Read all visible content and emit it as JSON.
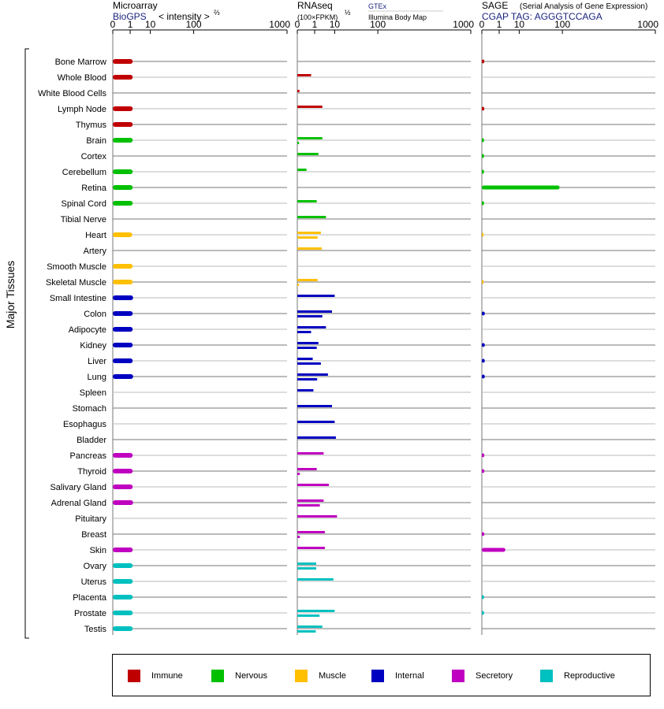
{
  "panels": {
    "microarray": {
      "title": "Microarray",
      "source": "BioGPS",
      "unit": "< intensity >",
      "unit_exp": "⅔"
    },
    "rnaseq": {
      "title": "RNAseq",
      "unit": "(100×FPKM)",
      "unit_exp": "½",
      "source_a": "GTEx",
      "source_b": "Illumina Body Map"
    },
    "sage": {
      "title": "SAGE",
      "subtitle": "(Serial Analysis of Gene Expression)",
      "source": "CGAP TAG: AGGGTCCAGA"
    }
  },
  "axis_ticks": [
    "0",
    "1",
    "10",
    "100",
    "1000"
  ],
  "y_group_label": "Major Tissues",
  "legend": [
    {
      "name": "Immune",
      "color": "#c00000"
    },
    {
      "name": "Nervous",
      "color": "#00c000"
    },
    {
      "name": "Muscle",
      "color": "#ffc000"
    },
    {
      "name": "Internal",
      "color": "#0000c0"
    },
    {
      "name": "Secretory",
      "color": "#c000c0"
    },
    {
      "name": "Reproductive",
      "color": "#00c0c0"
    }
  ],
  "chart_data": {
    "type": "bar",
    "x_scale": "power",
    "xlim": [
      0,
      1000
    ],
    "categories": [
      "Bone Marrow",
      "Whole Blood",
      "White Blood Cells",
      "Lymph Node",
      "Thymus",
      "Brain",
      "Cortex",
      "Cerebellum",
      "Retina",
      "Spinal Cord",
      "Tibial Nerve",
      "Heart",
      "Artery",
      "Smooth Muscle",
      "Skeletal Muscle",
      "Small Intestine",
      "Colon",
      "Adipocyte",
      "Kidney",
      "Liver",
      "Lung",
      "Spleen",
      "Stomach",
      "Esophagus",
      "Bladder",
      "Pancreas",
      "Thyroid",
      "Salivary Gland",
      "Adrenal Gland",
      "Pituitary",
      "Breast",
      "Skin",
      "Ovary",
      "Uterus",
      "Placenta",
      "Prostate",
      "Testis"
    ],
    "groups": [
      "Immune",
      "Immune",
      "Immune",
      "Immune",
      "Immune",
      "Nervous",
      "Nervous",
      "Nervous",
      "Nervous",
      "Nervous",
      "Nervous",
      "Muscle",
      "Muscle",
      "Muscle",
      "Muscle",
      "Internal",
      "Internal",
      "Internal",
      "Internal",
      "Internal",
      "Internal",
      "Internal",
      "Internal",
      "Internal",
      "Internal",
      "Secretory",
      "Secretory",
      "Secretory",
      "Secretory",
      "Secretory",
      "Secretory",
      "Secretory",
      "Reproductive",
      "Reproductive",
      "Reproductive",
      "Reproductive",
      "Reproductive"
    ],
    "series": [
      {
        "name": "Microarray",
        "values": [
          1.5,
          1.5,
          null,
          1.5,
          1.5,
          1.5,
          null,
          1.5,
          1.5,
          1.5,
          null,
          1.4,
          null,
          1.5,
          1.5,
          1.6,
          1.5,
          1.5,
          1.5,
          1.5,
          1.6,
          null,
          null,
          null,
          null,
          1.5,
          1.5,
          1.5,
          1.6,
          null,
          null,
          1.5,
          1.5,
          1.5,
          1.5,
          1.5,
          1.5
        ]
      },
      {
        "name": "GTEx",
        "values": [
          null,
          0.5,
          0.002,
          3,
          null,
          3,
          1.8,
          0.15,
          null,
          1.4,
          4.5,
          2.5,
          2.8,
          null,
          1.6,
          10,
          8,
          4.5,
          1.8,
          0.7,
          5.5,
          0.8,
          8,
          10,
          11,
          3.5,
          1.4,
          6,
          3.5,
          12,
          4,
          4,
          1.3,
          9,
          null,
          10,
          3
        ]
      },
      {
        "name": "Illumina Body Map",
        "values": [
          null,
          null,
          null,
          null,
          null,
          0.001,
          null,
          null,
          null,
          null,
          null,
          1.6,
          null,
          null,
          0.001,
          null,
          3,
          0.5,
          1.4,
          2.5,
          1.5,
          null,
          null,
          null,
          null,
          null,
          0.003,
          null,
          2.2,
          null,
          0.003,
          null,
          1.3,
          null,
          null,
          2.1,
          1.2
        ]
      },
      {
        "name": "SAGE",
        "values": [
          0.003,
          null,
          null,
          0.003,
          null,
          0.002,
          0.002,
          0.002,
          90,
          0.002,
          null,
          0.001,
          null,
          null,
          0.001,
          null,
          0.005,
          null,
          0.005,
          0.005,
          0.005,
          null,
          null,
          null,
          null,
          0.003,
          0.003,
          null,
          null,
          null,
          0.003,
          2.5,
          null,
          null,
          0.002,
          0.002,
          null
        ]
      }
    ]
  }
}
